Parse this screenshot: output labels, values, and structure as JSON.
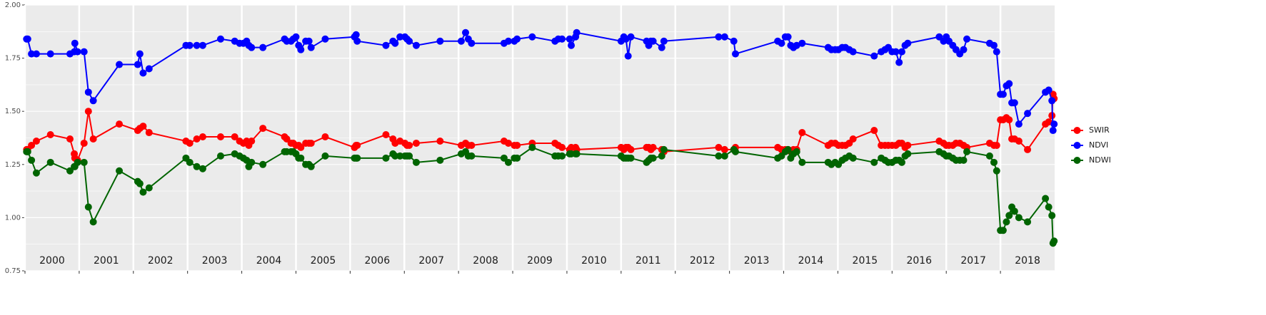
{
  "chart_data": {
    "type": "line",
    "x": [
      2000.03,
      2000.05,
      2000.12,
      2000.21,
      2000.47,
      2000.83,
      2000.91,
      2000.92,
      2000.97,
      2001.09,
      2001.17,
      2001.26,
      2001.74,
      2002.08,
      2002.12,
      2002.18,
      2002.29,
      2002.97,
      2003.04,
      2003.17,
      2003.28,
      2003.61,
      2003.87,
      2003.96,
      2004.03,
      2004.09,
      2004.13,
      2004.18,
      2004.39,
      2004.79,
      2004.83,
      2004.91,
      2004.95,
      2005.0,
      2005.05,
      2005.09,
      2005.18,
      2005.24,
      2005.28,
      2005.54,
      2006.08,
      2006.11,
      2006.13,
      2006.66,
      2006.79,
      2006.83,
      2006.92,
      2007.01,
      2007.05,
      2007.09,
      2007.22,
      2007.66,
      2008.05,
      2008.13,
      2008.18,
      2008.24,
      2008.84,
      2008.92,
      2009.03,
      2009.08,
      2009.36,
      2009.78,
      2009.84,
      2009.91,
      2010.05,
      2010.08,
      2010.16,
      2010.18,
      2011.0,
      2011.05,
      2011.09,
      2011.13,
      2011.18,
      2011.47,
      2011.51,
      2011.55,
      2011.59,
      2011.75,
      2011.79,
      2012.8,
      2012.91,
      2013.08,
      2013.11,
      2013.89,
      2013.96,
      2014.03,
      2014.08,
      2014.13,
      2014.18,
      2014.24,
      2014.34,
      2014.82,
      2014.88,
      2014.95,
      2015.01,
      2015.08,
      2015.14,
      2015.21,
      2015.28,
      2015.67,
      2015.8,
      2015.87,
      2015.93,
      2016.0,
      2016.07,
      2016.13,
      2016.18,
      2016.24,
      2016.29,
      2016.87,
      2016.95,
      2017.0,
      2017.05,
      2017.12,
      2017.18,
      2017.25,
      2017.32,
      2017.38,
      2017.8,
      2017.88,
      2017.93,
      2018.0,
      2018.05,
      2018.11,
      2018.16,
      2018.21,
      2018.26,
      2018.34,
      2018.5,
      2018.83,
      2018.89,
      2018.95,
      2018.97,
      2018.99
    ],
    "series": [
      {
        "name": "SWIR",
        "color": "#ff0000",
        "values": [
          1.32,
          1.32,
          1.34,
          1.36,
          1.39,
          1.37,
          1.3,
          1.28,
          1.27,
          1.35,
          1.5,
          1.37,
          1.44,
          1.41,
          1.42,
          1.43,
          1.4,
          1.36,
          1.35,
          1.37,
          1.38,
          1.38,
          1.38,
          1.36,
          1.35,
          1.36,
          1.34,
          1.36,
          1.42,
          1.38,
          1.37,
          1.35,
          1.35,
          1.34,
          1.34,
          1.33,
          1.35,
          1.35,
          1.35,
          1.38,
          1.33,
          1.34,
          1.34,
          1.39,
          1.37,
          1.35,
          1.36,
          1.35,
          1.34,
          1.34,
          1.35,
          1.36,
          1.34,
          1.35,
          1.34,
          1.34,
          1.36,
          1.35,
          1.34,
          1.34,
          1.35,
          1.35,
          1.34,
          1.33,
          1.32,
          1.33,
          1.33,
          1.32,
          1.33,
          1.32,
          1.33,
          1.33,
          1.32,
          1.33,
          1.33,
          1.32,
          1.33,
          1.32,
          1.31,
          1.33,
          1.32,
          1.32,
          1.33,
          1.33,
          1.32,
          1.32,
          1.32,
          1.31,
          1.32,
          1.32,
          1.4,
          1.34,
          1.35,
          1.35,
          1.34,
          1.34,
          1.34,
          1.35,
          1.37,
          1.41,
          1.34,
          1.34,
          1.34,
          1.34,
          1.34,
          1.35,
          1.35,
          1.33,
          1.34,
          1.36,
          1.35,
          1.34,
          1.34,
          1.34,
          1.35,
          1.35,
          1.34,
          1.33,
          1.35,
          1.34,
          1.34,
          1.46,
          1.46,
          1.47,
          1.46,
          1.37,
          1.37,
          1.36,
          1.32,
          1.44,
          1.45,
          1.48,
          1.58,
          1.56
        ]
      },
      {
        "name": "NDVI",
        "color": "#0000ff",
        "values": [
          1.84,
          1.84,
          1.77,
          1.77,
          1.77,
          1.77,
          1.78,
          1.82,
          1.78,
          1.78,
          1.59,
          1.55,
          1.72,
          1.72,
          1.77,
          1.68,
          1.7,
          1.81,
          1.81,
          1.81,
          1.81,
          1.84,
          1.83,
          1.82,
          1.82,
          1.83,
          1.81,
          1.8,
          1.8,
          1.84,
          1.83,
          1.83,
          1.84,
          1.85,
          1.81,
          1.79,
          1.83,
          1.83,
          1.8,
          1.84,
          1.85,
          1.86,
          1.83,
          1.81,
          1.83,
          1.82,
          1.85,
          1.85,
          1.84,
          1.83,
          1.81,
          1.83,
          1.83,
          1.87,
          1.84,
          1.82,
          1.82,
          1.83,
          1.83,
          1.84,
          1.85,
          1.83,
          1.84,
          1.84,
          1.84,
          1.81,
          1.85,
          1.87,
          1.83,
          1.85,
          1.84,
          1.76,
          1.85,
          1.83,
          1.81,
          1.83,
          1.83,
          1.8,
          1.83,
          1.85,
          1.85,
          1.83,
          1.77,
          1.83,
          1.82,
          1.85,
          1.85,
          1.81,
          1.8,
          1.81,
          1.82,
          1.8,
          1.79,
          1.79,
          1.79,
          1.8,
          1.8,
          1.79,
          1.78,
          1.76,
          1.78,
          1.79,
          1.8,
          1.78,
          1.78,
          1.73,
          1.78,
          1.81,
          1.82,
          1.85,
          1.83,
          1.85,
          1.83,
          1.81,
          1.79,
          1.77,
          1.79,
          1.84,
          1.82,
          1.81,
          1.78,
          1.58,
          1.58,
          1.62,
          1.63,
          1.54,
          1.54,
          1.44,
          1.49,
          1.59,
          1.6,
          1.55,
          1.41,
          1.44
        ]
      },
      {
        "name": "NDWI",
        "color": "#006400",
        "values": [
          1.31,
          1.31,
          1.27,
          1.21,
          1.26,
          1.22,
          1.24,
          1.24,
          1.26,
          1.26,
          1.05,
          0.98,
          1.22,
          1.17,
          1.16,
          1.12,
          1.14,
          1.28,
          1.26,
          1.24,
          1.23,
          1.29,
          1.3,
          1.29,
          1.28,
          1.27,
          1.24,
          1.26,
          1.25,
          1.31,
          1.31,
          1.31,
          1.31,
          1.3,
          1.28,
          1.28,
          1.25,
          1.25,
          1.24,
          1.29,
          1.28,
          1.28,
          1.28,
          1.28,
          1.3,
          1.29,
          1.29,
          1.29,
          1.29,
          1.29,
          1.26,
          1.27,
          1.3,
          1.31,
          1.29,
          1.29,
          1.28,
          1.26,
          1.28,
          1.28,
          1.33,
          1.29,
          1.29,
          1.29,
          1.3,
          1.3,
          1.3,
          1.3,
          1.29,
          1.28,
          1.28,
          1.28,
          1.28,
          1.26,
          1.27,
          1.28,
          1.28,
          1.29,
          1.32,
          1.29,
          1.29,
          1.32,
          1.31,
          1.28,
          1.29,
          1.31,
          1.32,
          1.28,
          1.3,
          1.31,
          1.26,
          1.26,
          1.25,
          1.26,
          1.25,
          1.27,
          1.28,
          1.29,
          1.28,
          1.26,
          1.28,
          1.27,
          1.26,
          1.26,
          1.27,
          1.27,
          1.26,
          1.29,
          1.3,
          1.31,
          1.3,
          1.29,
          1.29,
          1.28,
          1.27,
          1.27,
          1.27,
          1.31,
          1.29,
          1.26,
          1.22,
          0.94,
          0.94,
          0.98,
          1.01,
          1.05,
          1.03,
          1.0,
          0.98,
          1.09,
          1.05,
          1.01,
          0.88,
          0.89
        ]
      }
    ],
    "xlim": [
      2000,
      2019
    ],
    "xticks": [
      2000,
      2001,
      2002,
      2003,
      2004,
      2005,
      2006,
      2007,
      2008,
      2009,
      2010,
      2011,
      2012,
      2013,
      2014,
      2015,
      2016,
      2017,
      2018
    ],
    "ylim": [
      0.75,
      2.0
    ],
    "yticks": [
      0.75,
      {
        "value": 1,
        "label": "1.00"
      },
      1.25,
      {
        "value": 1.5,
        "label": "1.50"
      },
      1.75,
      {
        "value": 2,
        "label": "2.00"
      }
    ],
    "grid": true,
    "legend": "right"
  }
}
